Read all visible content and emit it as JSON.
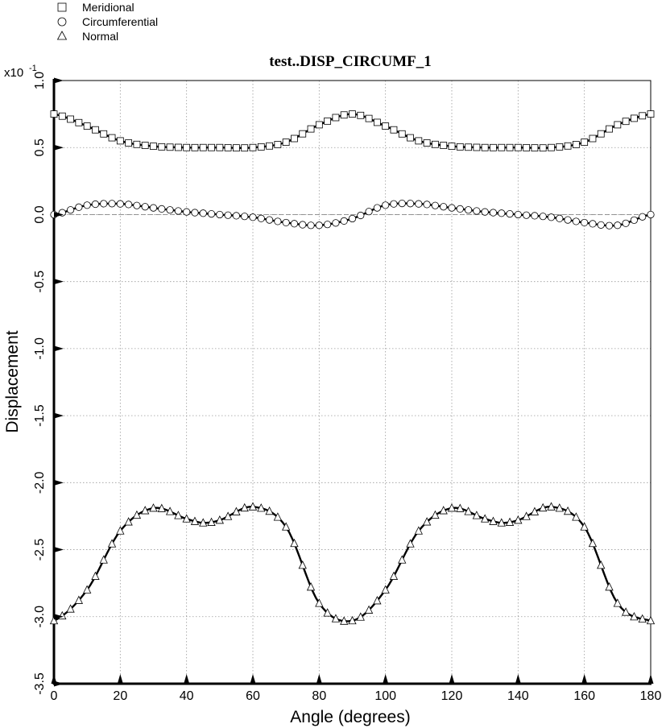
{
  "legend": [
    {
      "label": "Meridional",
      "marker": "square"
    },
    {
      "label": "Circumferential",
      "marker": "circle"
    },
    {
      "label": "Normal",
      "marker": "triangle"
    }
  ],
  "chart_data": {
    "type": "line",
    "title": "test..DISP_CIRCUMF_1",
    "xlabel": "Angle (degrees)",
    "ylabel": "Displacement",
    "y_scale_label": "x10",
    "y_scale_exponent": "-1",
    "xlim": [
      0,
      180
    ],
    "ylim": [
      -3.5,
      1.0
    ],
    "x_ticks": [
      0,
      20,
      40,
      60,
      80,
      100,
      120,
      140,
      160,
      180
    ],
    "x_tick_labels": [
      "0",
      "20",
      "40",
      "60",
      "80",
      "100",
      "120",
      "140",
      "160",
      "180"
    ],
    "y_ticks": [
      1.0,
      0.5,
      0.0,
      -0.5,
      -1.0,
      -1.5,
      -2.0,
      -2.5,
      -3.0,
      -3.5
    ],
    "y_tick_labels": [
      "1.0",
      "0.5",
      "0.0",
      "-0.5",
      "-1.0",
      "-1.5",
      "-2.0",
      "-2.5",
      "-3.0",
      "-3.5"
    ],
    "grid": true,
    "legend_position": "top-left",
    "x": [
      0,
      10,
      20,
      30,
      40,
      45,
      50,
      60,
      70,
      80,
      90,
      100,
      110,
      120,
      130,
      135,
      140,
      150,
      160,
      170,
      180
    ],
    "series": [
      {
        "name": "Meridional",
        "marker": "square",
        "values": [
          0.75,
          0.66,
          0.55,
          0.51,
          0.5,
          0.5,
          0.5,
          0.5,
          0.54,
          0.67,
          0.75,
          0.66,
          0.55,
          0.51,
          0.5,
          0.5,
          0.5,
          0.5,
          0.54,
          0.67,
          0.75
        ]
      },
      {
        "name": "Circumferential",
        "marker": "circle",
        "values": [
          0.0,
          0.07,
          0.08,
          0.05,
          0.02,
          0.01,
          0.0,
          -0.02,
          -0.06,
          -0.08,
          -0.03,
          0.07,
          0.08,
          0.05,
          0.02,
          0.01,
          0.0,
          -0.02,
          -0.06,
          -0.08,
          0.0
        ]
      },
      {
        "name": "Normal",
        "marker": "triangle",
        "values": [
          -3.03,
          -2.8,
          -2.36,
          -2.19,
          -2.27,
          -2.3,
          -2.28,
          -2.18,
          -2.33,
          -2.9,
          -3.03,
          -2.8,
          -2.36,
          -2.19,
          -2.27,
          -2.3,
          -2.28,
          -2.18,
          -2.33,
          -2.9,
          -3.03
        ]
      }
    ]
  }
}
